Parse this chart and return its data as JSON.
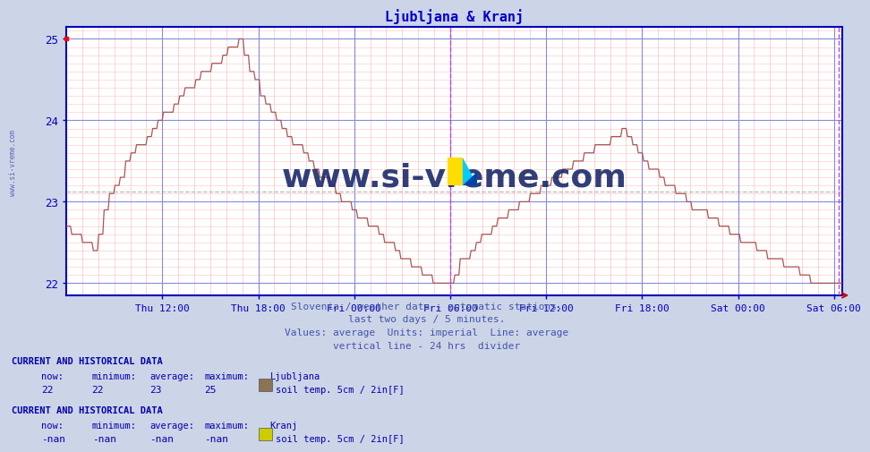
{
  "title": "Ljubljana & Kranj",
  "title_color": "#0000cc",
  "bg_color": "#ccd4e8",
  "plot_bg_color": "#ffffff",
  "line_color": "#aa5555",
  "grid_color_major": "#8888dd",
  "grid_color_minor": "#ffaaaa",
  "axis_color": "#0000bb",
  "tick_color": "#0000bb",
  "yticks": [
    22,
    23,
    24,
    25
  ],
  "ymin": 21.85,
  "ymax": 25.15,
  "vline_color": "#cc44cc",
  "avg_line_color": "#aaaaaa",
  "watermark": "www.si-vreme.com",
  "watermark_color": "#1a2a6a",
  "subtitle_lines": [
    "Slovenia / weather data - automatic stations.",
    "last two days / 5 minutes.",
    "Values: average  Units: imperial  Line: average",
    "vertical line - 24 hrs  divider"
  ],
  "subtitle_color": "#4455aa",
  "info_header_color": "#0000aa",
  "info_value_color": "#0000aa",
  "legend_square1_color": "#8b7355",
  "legend_square2_color": "#cccc00",
  "xlabel_ticks": [
    "Thu 12:00",
    "Thu 18:00",
    "Fri 00:00",
    "Fri 06:00",
    "Fri 12:00",
    "Fri 18:00",
    "Sat 00:00",
    "Sat 06:00"
  ],
  "left_label": "www.si-vreme.com"
}
